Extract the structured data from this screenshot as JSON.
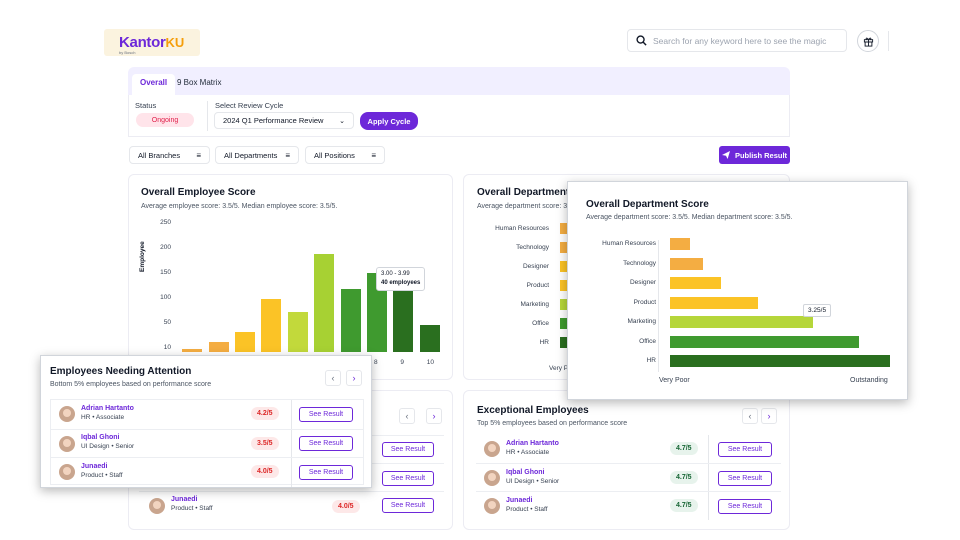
{
  "brand": {
    "logo_main": "Kantor",
    "logo_accent": "KU",
    "logo_sub": "by Bosch"
  },
  "search": {
    "placeholder": "Search for any keyword here to see the magic"
  },
  "tabs": [
    {
      "label": "Overall"
    },
    {
      "label": "9 Box Matrix"
    }
  ],
  "filters": {
    "status_label": "Status",
    "status_value": "Ongoing",
    "cycle_label": "Select Review Cycle",
    "cycle_value": "2024 Q1 Performance Review",
    "apply_label": "Apply Cycle",
    "branches": "All Branches",
    "departments": "All Departments",
    "positions": "All Positions",
    "publish_label": "Publish Result"
  },
  "employee_score": {
    "title": "Overall Employee Score",
    "subtitle": "Average employee score: 3.5/5. Median employee score: 3.5/5.",
    "tooltip_range": "3.00 - 3.99",
    "tooltip_count": "40 employees"
  },
  "chart_data": [
    {
      "type": "bar",
      "title": "Overall Employee Score",
      "ylabel": "Employee",
      "yticks": [
        250,
        200,
        150,
        100,
        50,
        10
      ],
      "xticks_visible": [
        "8",
        "9",
        "10"
      ],
      "values": [
        5,
        18,
        35,
        95,
        72,
        175,
        112,
        142,
        112,
        48
      ],
      "colors": [
        "#f4ad42",
        "#f4ad42",
        "#fbc326",
        "#fbc326",
        "#c2d93b",
        "#a7d133",
        "#3f9a2f",
        "#3f9a2f",
        "#2a6f1f",
        "#2a6f1f"
      ],
      "ylim": [
        0,
        250
      ]
    },
    {
      "type": "bar",
      "orientation": "horizontal",
      "title": "Overall Department Score",
      "categories": [
        "Human Resources",
        "Technology",
        "Designer",
        "Product",
        "Marketing",
        "Office",
        "HR"
      ],
      "values": [
        0.45,
        0.75,
        1.15,
        2.0,
        3.25,
        4.3,
        5.0
      ],
      "colors": [
        "#f4ad42",
        "#f4ad42",
        "#fbc326",
        "#fbc326",
        "#b5d63a",
        "#3f9a2f",
        "#2a6f1f"
      ],
      "xlim": [
        0,
        5
      ],
      "x_min_label": "Very Poor",
      "x_max_label": "Outstanding",
      "annotation": "3.25/5"
    }
  ],
  "department_score": {
    "title": "Overall Department Score",
    "subtitle": "Average department score: 3.5/5. Median department score: 3.5/5.",
    "bg_title": "Overall Department S",
    "bg_subtitle": "Average department score: 3.",
    "bg_very": "Very P"
  },
  "needing_attention": {
    "title": "Employees Needing Attention",
    "subtitle": "Bottom 5%  employees based on performance score",
    "employees": [
      {
        "name": "Adrian Hartanto",
        "dept": "HR",
        "level": "Associate",
        "score": "4.2/5"
      },
      {
        "name": "Iqbal Ghoni",
        "dept": "UI Design",
        "level": "Senior",
        "score": "3.5/5"
      },
      {
        "name": "Junaedi",
        "dept": "Product",
        "level": "Staff",
        "score": "4.0/5"
      }
    ],
    "see_label": "See Result"
  },
  "background_list": {
    "row": {
      "name": "Junaedi",
      "dept": "Product",
      "level": "Staff",
      "score": "4.0/5"
    }
  },
  "exceptional": {
    "title": "Exceptional Employees",
    "subtitle": "Top 5% employees based on performance score",
    "employees": [
      {
        "name": "Adrian Hartanto",
        "dept": "HR",
        "level": "Associate",
        "score": "4.7/5"
      },
      {
        "name": "Iqbal Ghoni",
        "dept": "UI Design",
        "level": "Senior",
        "score": "4.7/5"
      },
      {
        "name": "Junaedi",
        "dept": "Product",
        "level": "Staff",
        "score": "4.7/5"
      }
    ]
  }
}
